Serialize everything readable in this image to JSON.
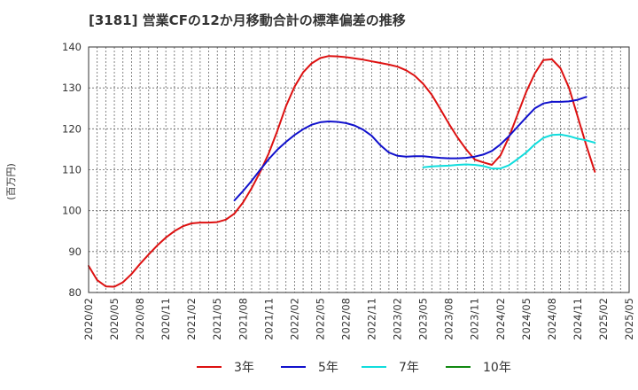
{
  "chart_data": {
    "type": "line",
    "title": "[3181]  営業CFの12か月移動合計の標準偏差の推移",
    "ylabel": "(百万円)",
    "xlabel": "",
    "ylim": [
      80,
      140
    ],
    "yticks": [
      80,
      90,
      100,
      110,
      120,
      130,
      140
    ],
    "xticks": [
      "2020/02",
      "2020/05",
      "2020/08",
      "2020/11",
      "2021/02",
      "2021/05",
      "2021/08",
      "2021/11",
      "2022/02",
      "2022/05",
      "2022/08",
      "2022/11",
      "2023/02",
      "2023/05",
      "2023/08",
      "2023/11",
      "2024/02",
      "2024/05",
      "2024/08",
      "2024/11",
      "2025/02",
      "2025/05"
    ],
    "grid": true,
    "legend_position": "bottom",
    "series": [
      {
        "name": "3年",
        "color": "#dd1111",
        "points": [
          [
            "2020/02",
            86.5
          ],
          [
            "2020/03",
            83.0
          ],
          [
            "2020/04",
            81.5
          ],
          [
            "2020/05",
            81.4
          ],
          [
            "2020/06",
            82.5
          ],
          [
            "2020/07",
            84.5
          ],
          [
            "2020/08",
            87.0
          ],
          [
            "2020/09",
            89.3
          ],
          [
            "2020/10",
            91.5
          ],
          [
            "2020/11",
            93.4
          ],
          [
            "2020/12",
            95.0
          ],
          [
            "2021/01",
            96.2
          ],
          [
            "2021/02",
            96.9
          ],
          [
            "2021/03",
            97.1
          ],
          [
            "2021/04",
            97.1
          ],
          [
            "2021/05",
            97.2
          ],
          [
            "2021/06",
            97.8
          ],
          [
            "2021/07",
            99.3
          ],
          [
            "2021/08",
            102.0
          ],
          [
            "2021/09",
            105.5
          ],
          [
            "2021/10",
            109.5
          ],
          [
            "2021/11",
            114.0
          ],
          [
            "2021/12",
            119.5
          ],
          [
            "2022/01",
            125.5
          ],
          [
            "2022/02",
            130.3
          ],
          [
            "2022/03",
            133.8
          ],
          [
            "2022/04",
            136.0
          ],
          [
            "2022/05",
            137.3
          ],
          [
            "2022/06",
            137.8
          ],
          [
            "2022/07",
            137.7
          ],
          [
            "2022/08",
            137.5
          ],
          [
            "2022/09",
            137.2
          ],
          [
            "2022/10",
            136.9
          ],
          [
            "2022/11",
            136.5
          ],
          [
            "2022/12",
            136.1
          ],
          [
            "2023/01",
            135.7
          ],
          [
            "2023/02",
            135.2
          ],
          [
            "2023/03",
            134.3
          ],
          [
            "2023/04",
            133.0
          ],
          [
            "2023/05",
            131.0
          ],
          [
            "2023/06",
            128.3
          ],
          [
            "2023/07",
            124.8
          ],
          [
            "2023/08",
            121.2
          ],
          [
            "2023/09",
            117.9
          ],
          [
            "2023/10",
            115.0
          ],
          [
            "2023/11",
            112.5
          ],
          [
            "2023/12",
            111.8
          ],
          [
            "2024/01",
            111.2
          ],
          [
            "2024/02",
            113.5
          ],
          [
            "2024/03",
            118.0
          ],
          [
            "2024/04",
            123.5
          ],
          [
            "2024/05",
            129.0
          ],
          [
            "2024/06",
            133.5
          ],
          [
            "2024/07",
            136.8
          ],
          [
            "2024/08",
            137.0
          ],
          [
            "2024/09",
            134.8
          ],
          [
            "2024/10",
            130.0
          ],
          [
            "2024/11",
            123.0
          ],
          [
            "2024/12",
            116.0
          ],
          [
            "2025/01",
            109.5
          ]
        ]
      },
      {
        "name": "5年",
        "color": "#1111cc",
        "points": [
          [
            "2021/07",
            102.5
          ],
          [
            "2021/08",
            104.8
          ],
          [
            "2021/09",
            107.3
          ],
          [
            "2021/10",
            110.0
          ],
          [
            "2021/11",
            112.6
          ],
          [
            "2021/12",
            114.9
          ],
          [
            "2022/01",
            116.8
          ],
          [
            "2022/02",
            118.5
          ],
          [
            "2022/03",
            119.9
          ],
          [
            "2022/04",
            121.0
          ],
          [
            "2022/05",
            121.6
          ],
          [
            "2022/06",
            121.8
          ],
          [
            "2022/07",
            121.7
          ],
          [
            "2022/08",
            121.4
          ],
          [
            "2022/09",
            120.8
          ],
          [
            "2022/10",
            119.8
          ],
          [
            "2022/11",
            118.3
          ],
          [
            "2022/12",
            116.0
          ],
          [
            "2023/01",
            114.2
          ],
          [
            "2023/02",
            113.4
          ],
          [
            "2023/03",
            113.2
          ],
          [
            "2023/04",
            113.3
          ],
          [
            "2023/05",
            113.3
          ],
          [
            "2023/06",
            113.1
          ],
          [
            "2023/07",
            112.9
          ],
          [
            "2023/08",
            112.8
          ],
          [
            "2023/09",
            112.8
          ],
          [
            "2023/10",
            112.9
          ],
          [
            "2023/11",
            113.2
          ],
          [
            "2023/12",
            113.7
          ],
          [
            "2024/01",
            114.6
          ],
          [
            "2024/02",
            116.2
          ],
          [
            "2024/03",
            118.2
          ],
          [
            "2024/04",
            120.5
          ],
          [
            "2024/05",
            122.8
          ],
          [
            "2024/06",
            125.0
          ],
          [
            "2024/07",
            126.2
          ],
          [
            "2024/08",
            126.6
          ],
          [
            "2024/09",
            126.6
          ],
          [
            "2024/10",
            126.7
          ],
          [
            "2024/11",
            127.1
          ],
          [
            "2024/12",
            127.8
          ]
        ]
      },
      {
        "name": "7年",
        "color": "#11dddd",
        "points": [
          [
            "2023/05",
            110.6
          ],
          [
            "2023/06",
            110.8
          ],
          [
            "2023/07",
            110.9
          ],
          [
            "2023/08",
            111.0
          ],
          [
            "2023/09",
            111.2
          ],
          [
            "2023/10",
            111.3
          ],
          [
            "2023/11",
            111.2
          ],
          [
            "2023/12",
            110.9
          ],
          [
            "2024/01",
            110.3
          ],
          [
            "2024/02",
            110.3
          ],
          [
            "2024/03",
            111.1
          ],
          [
            "2024/04",
            112.6
          ],
          [
            "2024/05",
            114.2
          ],
          [
            "2024/06",
            116.2
          ],
          [
            "2024/07",
            117.8
          ],
          [
            "2024/08",
            118.5
          ],
          [
            "2024/09",
            118.6
          ],
          [
            "2024/10",
            118.2
          ],
          [
            "2024/11",
            117.6
          ],
          [
            "2024/12",
            117.2
          ],
          [
            "2025/01",
            116.6
          ]
        ]
      },
      {
        "name": "10年",
        "color": "#118811",
        "points": []
      }
    ]
  }
}
